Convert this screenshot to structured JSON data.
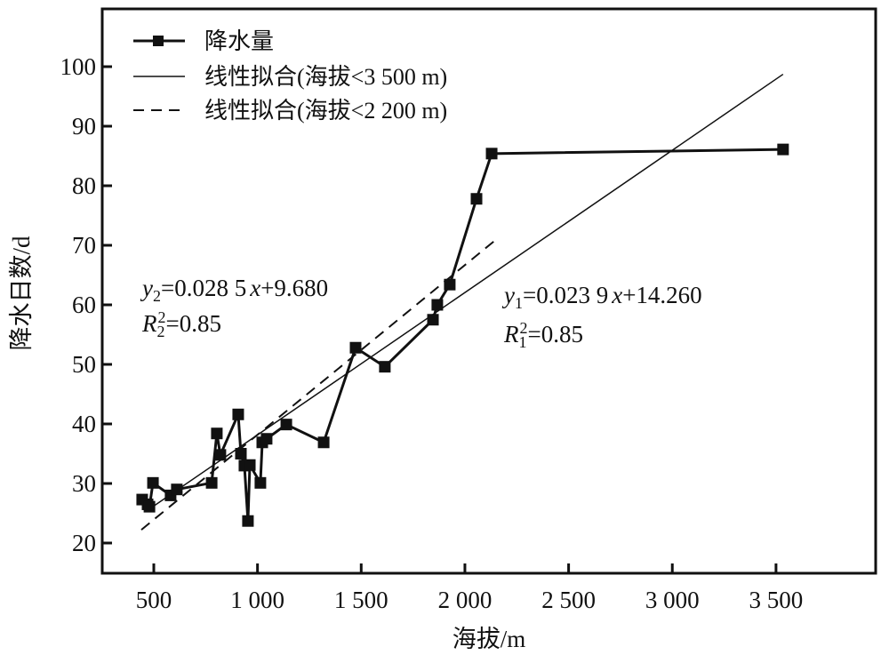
{
  "chart_data": {
    "type": "line",
    "xlabel": "海拔/m",
    "ylabel": "降水日数/d",
    "xlim": [
      250,
      3900
    ],
    "ylim": [
      15,
      105
    ],
    "xticks": [
      500,
      1000,
      1500,
      2000,
      2500,
      3000,
      3500
    ],
    "xtick_labels": [
      "500",
      "1 000",
      "1 500",
      "2 000",
      "2 500",
      "3 000",
      "3 500"
    ],
    "yticks": [
      20,
      30,
      40,
      50,
      60,
      70,
      80,
      90,
      100
    ],
    "ytick_labels": [
      "20",
      "30",
      "40",
      "50",
      "60",
      "70",
      "80",
      "90",
      "100"
    ],
    "grid": false,
    "legend_position": "top-left",
    "series": [
      {
        "name": "降水量",
        "style": "line-square-marker",
        "x": [
          444,
          470,
          479,
          496,
          581,
          611,
          779,
          804,
          821,
          907,
          920,
          937,
          954,
          963,
          1014,
          1023,
          1044,
          1139,
          1319,
          1473,
          1614,
          1846,
          1867,
          1927,
          2056,
          2129,
          3534
        ],
        "y": [
          27.3,
          26.5,
          26.1,
          30.1,
          28.0,
          29.0,
          30.1,
          38.4,
          34.8,
          41.6,
          35.0,
          33.0,
          23.7,
          33.1,
          30.1,
          36.9,
          37.5,
          39.9,
          36.9,
          52.8,
          49.6,
          57.5,
          60.0,
          63.4,
          77.8,
          85.4,
          86.1
        ]
      },
      {
        "name": "线性拟合(海拔<3 500 m)",
        "style": "solid",
        "slope": 0.0239,
        "intercept": 14.26,
        "x_range": [
          460,
          3534
        ]
      },
      {
        "name": "线性拟合(海拔<2 200 m)",
        "style": "dashed",
        "slope": 0.0285,
        "intercept": 9.68,
        "x_range": [
          440,
          2150
        ]
      }
    ],
    "annotations": {
      "fit2": {
        "y_var": "y",
        "y_sub": "2",
        "eq_rest": "=0.028 5",
        "x_var": "x",
        "eq_tail": "+9.680",
        "r_var": "R",
        "r_sub": "2",
        "r_sup": "2",
        "r_val": "=0.85"
      },
      "fit1": {
        "y_var": "y",
        "y_sub": "1",
        "eq_rest": "=0.023 9",
        "x_var": "x",
        "eq_tail": "+14.260",
        "r_var": "R",
        "r_sub": "1",
        "r_sup": "2",
        "r_val": "=0.85"
      }
    }
  }
}
